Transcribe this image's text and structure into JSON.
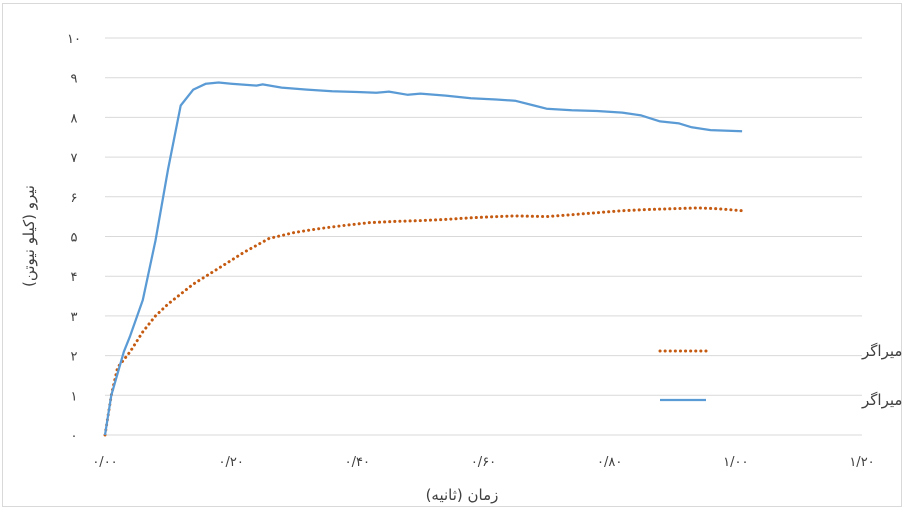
{
  "chart_data": {
    "type": "line",
    "xlabel": "زمان (ثانیه)",
    "ylabel": "نیرو (کیلو نیوتن)",
    "xlim": [
      0,
      1.2
    ],
    "ylim": [
      0,
      10
    ],
    "x_ticks": [
      {
        "value": 0.0,
        "label": "۰/۰۰"
      },
      {
        "value": 0.2,
        "label": "۰/۲۰"
      },
      {
        "value": 0.4,
        "label": "۰/۴۰"
      },
      {
        "value": 0.6,
        "label": "۰/۶۰"
      },
      {
        "value": 0.8,
        "label": "۰/۸۰"
      },
      {
        "value": 1.0,
        "label": "۱/۰۰"
      },
      {
        "value": 1.2,
        "label": "۱/۲۰"
      }
    ],
    "y_ticks": [
      {
        "value": 0,
        "label": "۰"
      },
      {
        "value": 1,
        "label": "۱"
      },
      {
        "value": 2,
        "label": "۲"
      },
      {
        "value": 3,
        "label": "۳"
      },
      {
        "value": 4,
        "label": "۴"
      },
      {
        "value": 5,
        "label": "۵"
      },
      {
        "value": 6,
        "label": "۶"
      },
      {
        "value": 7,
        "label": "۷"
      },
      {
        "value": 8,
        "label": "۸"
      },
      {
        "value": 9,
        "label": "۹"
      },
      {
        "value": 10,
        "label": "۱۰"
      }
    ],
    "grid": "horizontal",
    "legend_position": "right-bottom",
    "series": [
      {
        "name": "قاب بدون میراگر",
        "color": "#c55a11",
        "style": "dotted",
        "points": [
          [
            0.0,
            0.0
          ],
          [
            0.01,
            1.0
          ],
          [
            0.02,
            1.7
          ],
          [
            0.04,
            2.1
          ],
          [
            0.06,
            2.6
          ],
          [
            0.08,
            3.0
          ],
          [
            0.1,
            3.3
          ],
          [
            0.14,
            3.8
          ],
          [
            0.18,
            4.2
          ],
          [
            0.22,
            4.6
          ],
          [
            0.26,
            4.95
          ],
          [
            0.3,
            5.1
          ],
          [
            0.34,
            5.2
          ],
          [
            0.38,
            5.28
          ],
          [
            0.42,
            5.35
          ],
          [
            0.46,
            5.38
          ],
          [
            0.5,
            5.4
          ],
          [
            0.54,
            5.43
          ],
          [
            0.58,
            5.47
          ],
          [
            0.62,
            5.5
          ],
          [
            0.65,
            5.52
          ],
          [
            0.7,
            5.5
          ],
          [
            0.74,
            5.55
          ],
          [
            0.78,
            5.6
          ],
          [
            0.82,
            5.65
          ],
          [
            0.86,
            5.68
          ],
          [
            0.9,
            5.7
          ],
          [
            0.94,
            5.72
          ],
          [
            0.97,
            5.7
          ],
          [
            1.01,
            5.65
          ]
        ]
      },
      {
        "name": "قاب دارای میراگر",
        "color": "#5b9bd5",
        "style": "solid",
        "points": [
          [
            0.0,
            0.0
          ],
          [
            0.01,
            1.0
          ],
          [
            0.03,
            2.1
          ],
          [
            0.04,
            2.5
          ],
          [
            0.06,
            3.4
          ],
          [
            0.08,
            4.9
          ],
          [
            0.1,
            6.7
          ],
          [
            0.12,
            8.3
          ],
          [
            0.14,
            8.7
          ],
          [
            0.16,
            8.85
          ],
          [
            0.18,
            8.88
          ],
          [
            0.2,
            8.85
          ],
          [
            0.24,
            8.8
          ],
          [
            0.25,
            8.83
          ],
          [
            0.28,
            8.75
          ],
          [
            0.32,
            8.7
          ],
          [
            0.36,
            8.66
          ],
          [
            0.4,
            8.64
          ],
          [
            0.43,
            8.62
          ],
          [
            0.45,
            8.65
          ],
          [
            0.48,
            8.57
          ],
          [
            0.5,
            8.6
          ],
          [
            0.54,
            8.55
          ],
          [
            0.58,
            8.48
          ],
          [
            0.62,
            8.45
          ],
          [
            0.65,
            8.42
          ],
          [
            0.68,
            8.3
          ],
          [
            0.7,
            8.22
          ],
          [
            0.74,
            8.18
          ],
          [
            0.78,
            8.16
          ],
          [
            0.82,
            8.12
          ],
          [
            0.85,
            8.05
          ],
          [
            0.88,
            7.9
          ],
          [
            0.91,
            7.85
          ],
          [
            0.93,
            7.75
          ],
          [
            0.96,
            7.68
          ],
          [
            1.01,
            7.65
          ]
        ]
      }
    ]
  }
}
